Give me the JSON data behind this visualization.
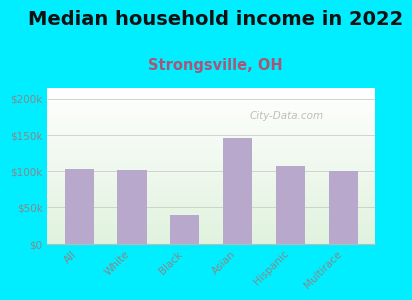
{
  "title": "Median household income in 2022",
  "subtitle": "Strongsville, OH",
  "categories": [
    "All",
    "White",
    "Black",
    "Asian",
    "Hispanic",
    "Multirace"
  ],
  "values": [
    103000,
    101000,
    40000,
    146000,
    107000,
    100000
  ],
  "bar_color": "#b8a8cc",
  "background_outer": "#00eeff",
  "yticks": [
    0,
    50000,
    100000,
    150000,
    200000
  ],
  "ytick_labels": [
    "$0",
    "$50k",
    "$100k",
    "$150k",
    "$200k"
  ],
  "ylim": [
    0,
    215000
  ],
  "title_fontsize": 14,
  "subtitle_fontsize": 10.5,
  "subtitle_color": "#aa5577",
  "tick_color": "#888888",
  "watermark": "City-Data.com"
}
